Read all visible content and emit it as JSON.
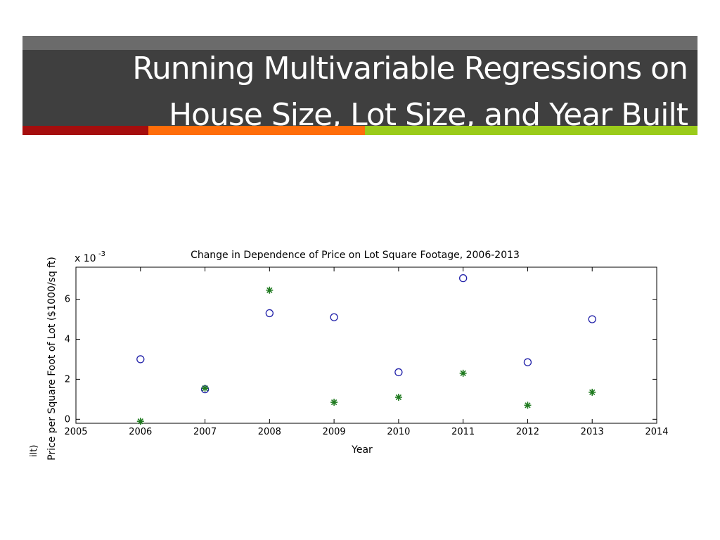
{
  "slide": {
    "title_line1": "Running Multivariable Regressions on",
    "title_line2": "House Size, Lot Size, and Year Built",
    "colors": {
      "band": "#3f3f3f",
      "accent1": "#a50d0d",
      "accent2": "#ff6d0a",
      "accent3": "#9acb1a"
    }
  },
  "chart_data": {
    "type": "scatter",
    "title": "Change in Dependence of Price on Lot Square Footage, 2006-2013",
    "xlabel": "Year",
    "ylabel": "Price per Square Foot of Lot ($1000/sq ft)",
    "y_multiplier_label": "x 10",
    "y_multiplier_exp": "-3",
    "side_fragment": "ilt)",
    "xlim": [
      2005,
      2014
    ],
    "ylim": [
      -0.2,
      7.6
    ],
    "x_ticks": [
      "2005",
      "2006",
      "2007",
      "2008",
      "2009",
      "2010",
      "2011",
      "2012",
      "2013",
      "2014"
    ],
    "y_ticks": [
      "0",
      "2",
      "4",
      "6"
    ],
    "grid": false,
    "series": [
      {
        "marker": "circle",
        "color": "#1f1fa8",
        "x": [
          2006,
          2007,
          2008,
          2009,
          2010,
          2011,
          2012,
          2013
        ],
        "y": [
          3.0,
          1.5,
          5.3,
          5.1,
          2.35,
          7.05,
          2.85,
          5.0
        ]
      },
      {
        "marker": "asterisk",
        "color": "#1f7a1f",
        "x": [
          2006,
          2007,
          2008,
          2009,
          2010,
          2011,
          2012,
          2013
        ],
        "y": [
          -0.1,
          1.55,
          6.45,
          0.85,
          1.1,
          2.3,
          0.7,
          1.35
        ]
      }
    ]
  }
}
